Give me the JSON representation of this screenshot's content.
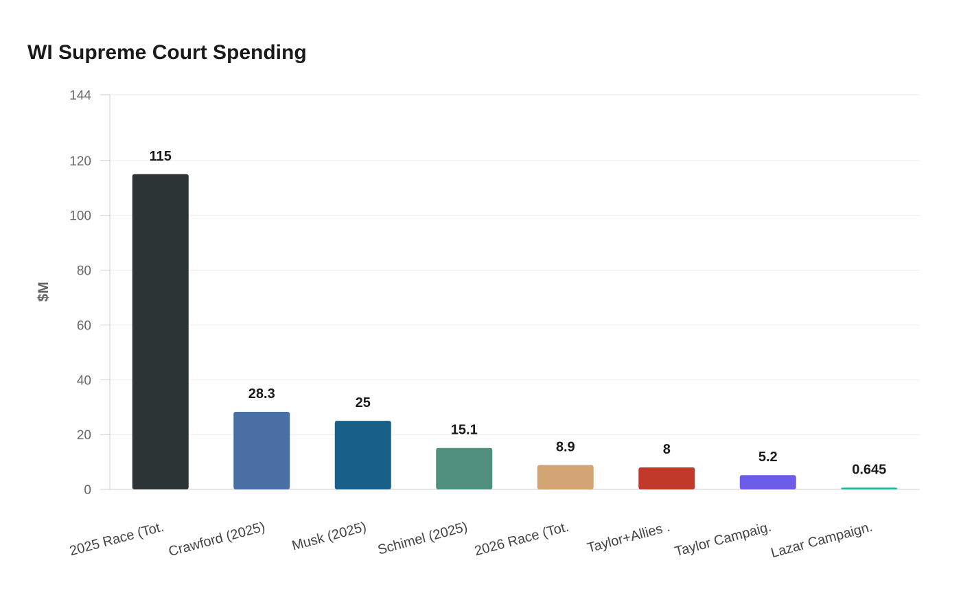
{
  "chart_data": {
    "type": "bar",
    "title": "WI Supreme Court Spending",
    "xlabel": "",
    "ylabel": "$M",
    "ylim": [
      0,
      144
    ],
    "yticks": [
      0,
      20,
      40,
      60,
      80,
      100,
      120,
      144
    ],
    "grid": true,
    "categories": [
      "2025 Race (Tot.",
      "Crawford (2025)",
      "Musk (2025)",
      "Schimel (2025)",
      "2026 Race (Tot.",
      "Taylor+Allies .",
      "Taylor Campaig.",
      "Lazar Campaign."
    ],
    "values": [
      115,
      28.3,
      25,
      15.1,
      8.9,
      8,
      5.2,
      0.645
    ],
    "data_labels": [
      "115",
      "28.3",
      "25",
      "15.1",
      "8.9",
      "8",
      "5.2",
      "0.645"
    ],
    "colors": [
      "#2d3436",
      "#4a6fa5",
      "#18608a",
      "#4f8f7b",
      "#d4a574",
      "#c0392b",
      "#6c5ce7",
      "#1abc9c"
    ]
  }
}
